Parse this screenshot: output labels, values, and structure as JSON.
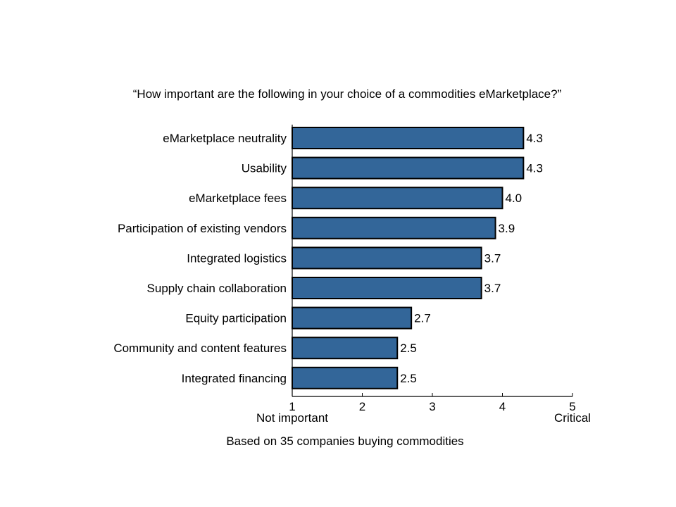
{
  "chart_data": {
    "type": "bar",
    "orientation": "horizontal",
    "title": "“How important are the following in your choice of a commodities eMarketplace?”",
    "categories": [
      "eMarketplace neutrality",
      "Usability",
      "eMarketplace fees",
      "Participation of existing vendors",
      "Integrated logistics",
      "Supply chain collaboration",
      "Equity participation",
      "Community and content features",
      "Integrated financing"
    ],
    "values": [
      4.3,
      4.3,
      4.0,
      3.9,
      3.7,
      3.7,
      2.7,
      2.5,
      2.5
    ],
    "value_labels": [
      "4.3",
      "4.3",
      "4.0",
      "3.9",
      "3.7",
      "3.7",
      "2.7",
      "2.5",
      "2.5"
    ],
    "xlim": [
      1,
      5
    ],
    "x_ticks": [
      1,
      2,
      3,
      4,
      5
    ],
    "x_tick_labels": [
      "1",
      "2",
      "3",
      "4",
      "5"
    ],
    "x_low_label": "Not important",
    "x_high_label": "Critical",
    "grid": false,
    "bar_color": "#336699",
    "bar_edge_color": "#000000"
  },
  "footnote": "Based on 35 companies buying commodities"
}
